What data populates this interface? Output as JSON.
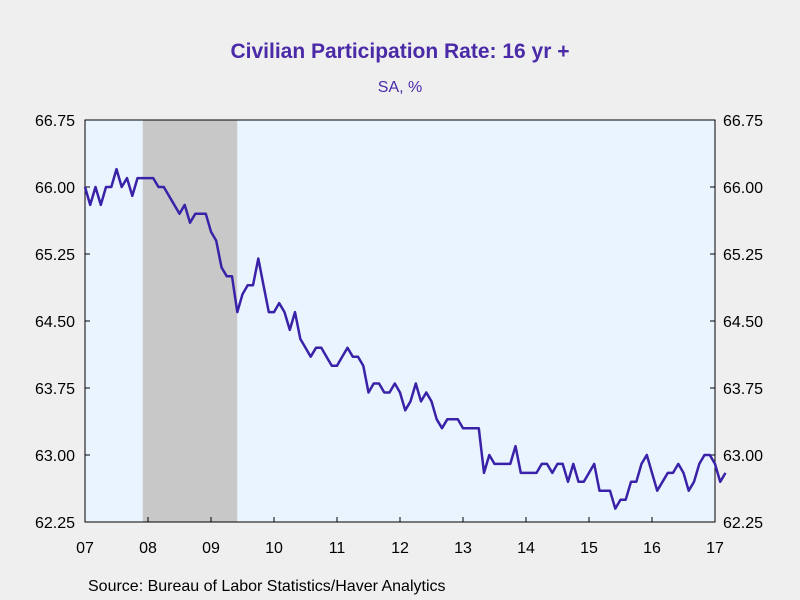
{
  "chart_data": {
    "type": "line",
    "title": "Civilian Participation Rate: 16 yr +",
    "subtitle": "SA, %",
    "source": "Source:  Bureau of Labor Statistics/Haver Analytics",
    "x_start_year": 2007,
    "x_end_year": 2017,
    "x_tick_labels": [
      "07",
      "08",
      "09",
      "10",
      "11",
      "12",
      "13",
      "14",
      "15",
      "16",
      "17"
    ],
    "y_tick_labels": [
      "66.75",
      "66.00",
      "65.25",
      "64.50",
      "63.75",
      "63.00",
      "62.25"
    ],
    "ylim": [
      62.25,
      66.75
    ],
    "y_ticks": [
      62.25,
      63.0,
      63.75,
      64.5,
      65.25,
      66.0,
      66.75
    ],
    "recession": {
      "start": "2007-12",
      "end": "2009-06"
    },
    "series": [
      {
        "start": "2007-01",
        "frequency": "monthly",
        "values": [
          66.0,
          65.8,
          66.0,
          65.8,
          66.0,
          66.0,
          66.2,
          66.0,
          66.1,
          65.9,
          66.1,
          66.1,
          66.1,
          66.1,
          66.0,
          66.0,
          65.9,
          65.8,
          65.7,
          65.8,
          65.6,
          65.7,
          65.7,
          65.7,
          65.5,
          65.4,
          65.1,
          65.0,
          65.0,
          64.6,
          64.8,
          64.9,
          64.9,
          65.2,
          64.9,
          64.6,
          64.6,
          64.7,
          64.6,
          64.4,
          64.6,
          64.3,
          64.2,
          64.1,
          64.2,
          64.2,
          64.1,
          64.0,
          64.0,
          64.1,
          64.2,
          64.1,
          64.1,
          64.0,
          63.7,
          63.8,
          63.8,
          63.7,
          63.7,
          63.8,
          63.7,
          63.5,
          63.6,
          63.8,
          63.6,
          63.7,
          63.6,
          63.4,
          63.3,
          63.4,
          63.4,
          63.4,
          63.3,
          63.3,
          63.3,
          63.3,
          62.8,
          63.0,
          62.9,
          62.9,
          62.9,
          62.9,
          63.1,
          62.8,
          62.8,
          62.8,
          62.8,
          62.9,
          62.9,
          62.8,
          62.9,
          62.9,
          62.7,
          62.9,
          62.7,
          62.7,
          62.8,
          62.9,
          62.6,
          62.6,
          62.6,
          62.4,
          62.5,
          62.5,
          62.7,
          62.7,
          62.9,
          63.0,
          62.8,
          62.6,
          62.7,
          62.8,
          62.8,
          62.9,
          62.8,
          62.6,
          62.7,
          62.9,
          63.0,
          63.0,
          62.9,
          62.7,
          62.8
        ]
      }
    ],
    "colors": {
      "line": "#3a22a8",
      "plot_bg": "#eaf4ff",
      "recession": "#c8c8c8",
      "text": "#4b2aa8"
    },
    "grid": false
  }
}
